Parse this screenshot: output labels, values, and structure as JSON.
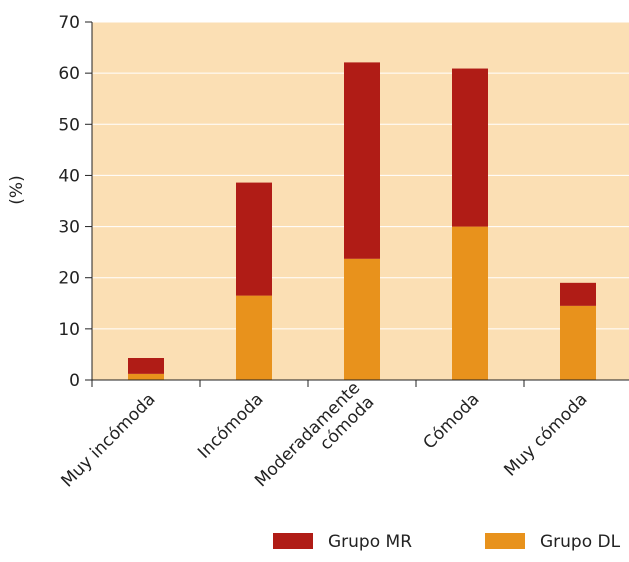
{
  "chart_data": {
    "type": "bar",
    "stacked": true,
    "categories": [
      [
        "Muy incómoda"
      ],
      [
        "Incómoda"
      ],
      [
        "Moderadamente",
        "cómoda"
      ],
      [
        "Cómoda"
      ],
      [
        "Muy cómoda"
      ]
    ],
    "series": [
      {
        "name": "Grupo DL",
        "color": "#e8921c",
        "values": [
          1.2,
          16.5,
          23.7,
          30.0,
          14.5
        ]
      },
      {
        "name": "Grupo MR",
        "color": "#b01c16",
        "values": [
          3.1,
          22.1,
          38.4,
          30.9,
          4.5
        ]
      }
    ],
    "legend_order": [
      "Grupo MR",
      "Grupo DL"
    ],
    "ylabel": "(%)",
    "ylim": [
      0,
      70
    ],
    "yticks": [
      0,
      10,
      20,
      30,
      40,
      50,
      60,
      70
    ],
    "grid": true,
    "plot_background": "#fbdfb4",
    "gridline_color": "#ffffff",
    "legend_position": "bottom"
  }
}
